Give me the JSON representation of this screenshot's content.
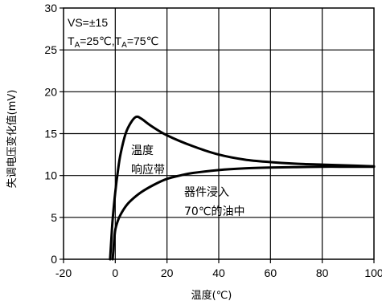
{
  "chart_data": {
    "type": "line",
    "xlabel": "温度(℃)",
    "ylabel": "失调电压变化值(mV)",
    "xlim": [
      -20,
      100
    ],
    "ylim": [
      0,
      30
    ],
    "xticks": [
      -20,
      0,
      20,
      40,
      60,
      80,
      100
    ],
    "yticks": [
      0,
      5,
      10,
      15,
      20,
      25,
      30
    ],
    "xtick_labels": [
      "-20",
      "0",
      "20",
      "40",
      "60",
      "80",
      "100"
    ],
    "ytick_labels": [
      "0",
      "5",
      "10",
      "15",
      "20",
      "25",
      "30"
    ],
    "grid": true,
    "conditions": {
      "line1": "VS=±15",
      "line2_parts": [
        "T",
        "A",
        "=25℃,T",
        "A",
        "=75℃"
      ]
    },
    "annotations": {
      "band_line1": "温度",
      "band_line2": "响应带",
      "lower_line1": "器件浸入",
      "lower_line2": "70℃的油中"
    },
    "series": [
      {
        "x": [
          -2,
          -1.5,
          -1,
          0,
          1,
          2,
          4,
          6,
          8,
          10,
          14,
          20,
          30,
          40,
          50,
          60,
          70,
          80,
          90,
          100
        ],
        "y": [
          0,
          2.5,
          4.8,
          8,
          10.5,
          12.5,
          15,
          16.3,
          17,
          16.8,
          15.9,
          14.8,
          13.5,
          12.5,
          11.9,
          11.6,
          11.4,
          11.3,
          11.2,
          11.1
        ],
        "color": "#000000"
      },
      {
        "x": [
          -1,
          -0.5,
          0,
          1,
          2,
          4,
          6,
          10,
          15,
          20,
          25,
          30,
          40,
          50,
          60,
          70,
          80,
          90,
          100
        ],
        "y": [
          0,
          2,
          3.5,
          4.6,
          5.3,
          6.3,
          7,
          8,
          8.9,
          9.6,
          10.0,
          10.3,
          10.65,
          10.85,
          10.95,
          11.0,
          11.05,
          11.05,
          11.05
        ],
        "color": "#000000"
      }
    ]
  }
}
